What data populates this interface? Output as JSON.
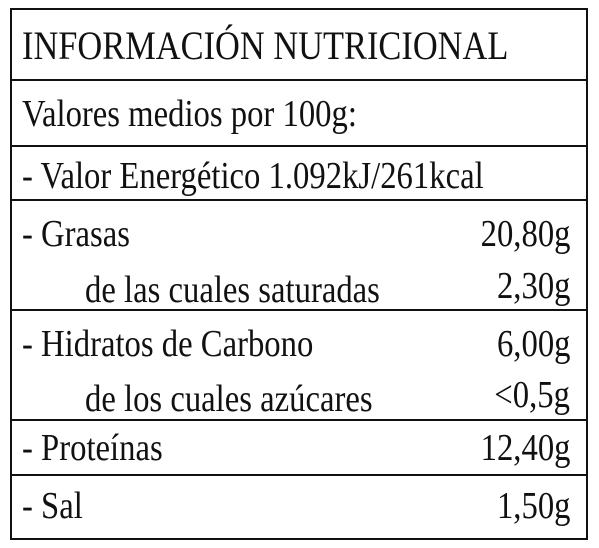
{
  "title": "INFORMACIÓN NUTRICIONAL",
  "subtitle": "Valores medios por 100g:",
  "energy": "- Valor Energético 1.092kJ/261kcal",
  "rows": [
    {
      "label": "- Grasas",
      "value": "20,80g",
      "sub_label": "de las cuales saturadas",
      "sub_value": "2,30g"
    },
    {
      "label": "- Hidratos de Carbono",
      "value": "6,00g",
      "sub_label": "de los cuales azúcares",
      "sub_value": "<0,5g"
    },
    {
      "label": "- Proteínas",
      "value": "12,40g"
    },
    {
      "label": "- Sal",
      "value": "1,50g"
    }
  ]
}
